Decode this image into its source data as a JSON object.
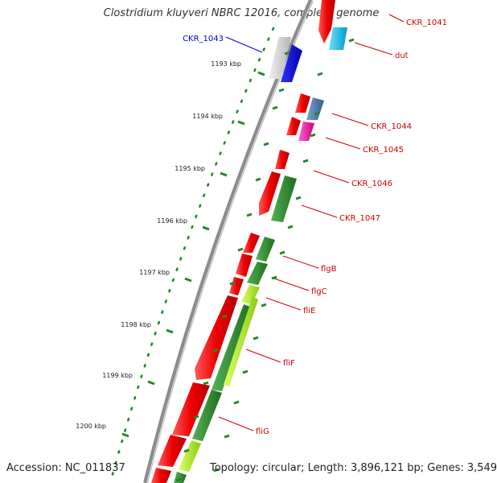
{
  "title": "Clostridium kluyveri NBRC 12016, complete genome",
  "footer": {
    "accession": "Accession: NC_011837",
    "stats": "Topology: circular; Length: 3,896,121 bp; Genes: 3,549"
  },
  "scale_ticks": [
    {
      "label": "1193 kbp"
    },
    {
      "label": "1194 kbp"
    },
    {
      "label": "1195 kbp"
    },
    {
      "label": "1196 kbp"
    },
    {
      "label": "1197 kbp"
    },
    {
      "label": "1198 kbp"
    },
    {
      "label": "1199 kbp"
    },
    {
      "label": "1200 kbp"
    }
  ],
  "gene_labels": [
    {
      "name": "CKR_1041",
      "color": "#cc0000"
    },
    {
      "name": "dut",
      "color": "#cc0000"
    },
    {
      "name": "CKR_1043",
      "color": "#0000cc"
    },
    {
      "name": "CKR_1044",
      "color": "#cc0000"
    },
    {
      "name": "CKR_1045",
      "color": "#cc0000"
    },
    {
      "name": "CKR_1046",
      "color": "#cc0000"
    },
    {
      "name": "CKR_1047",
      "color": "#cc0000"
    },
    {
      "name": "flgB",
      "color": "#cc0000"
    },
    {
      "name": "flgC",
      "color": "#cc0000"
    },
    {
      "name": "fliE",
      "color": "#cc0000"
    },
    {
      "name": "fliF",
      "color": "#cc0000"
    },
    {
      "name": "fliG",
      "color": "#cc0000"
    }
  ],
  "colors": {
    "backbone": "#8c8c8c",
    "cds": "#ee0000",
    "scale": "#228822",
    "cog_green": "#2a8a2a",
    "cog_lime": "#aaee22",
    "cog_blue": "#4477aa",
    "cog_cyan": "#00bbee",
    "cog_pink": "#ee1199",
    "label_red": "#cc0000",
    "label_blue": "#0000cc"
  }
}
